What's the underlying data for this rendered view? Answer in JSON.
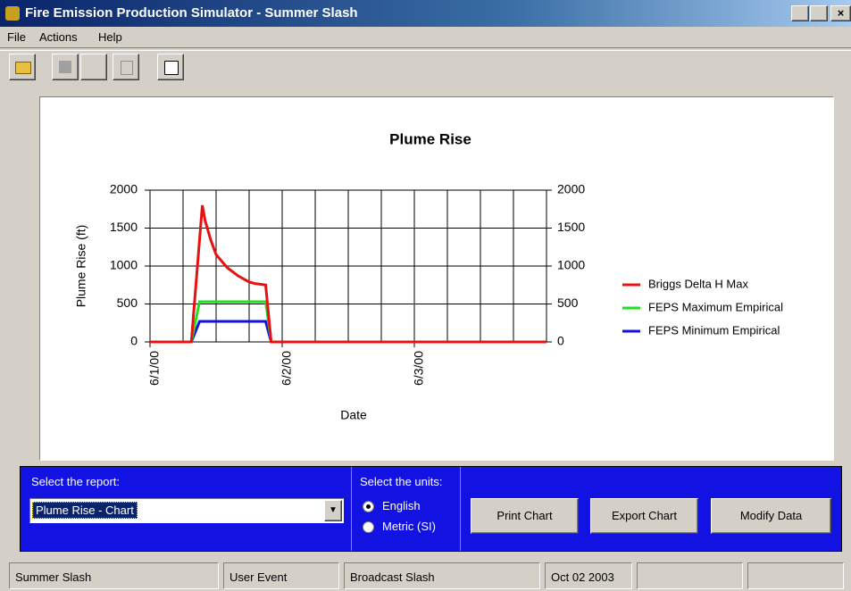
{
  "window": {
    "title": "Fire Emission Production Simulator - Summer Slash",
    "menu": [
      "File",
      "Actions",
      "Help"
    ]
  },
  "chart_data": {
    "type": "line",
    "title": "Plume Rise",
    "xlabel": "Date",
    "ylabel": "Plume Rise (ft)",
    "x": [
      0,
      7.5,
      9,
      9.5,
      10,
      11,
      12,
      14,
      16,
      18,
      19,
      20,
      21,
      22,
      72
    ],
    "xlim": [
      0,
      72
    ],
    "xticks": [
      {
        "value": 0,
        "label": "6/1/00"
      },
      {
        "value": 24,
        "label": "6/2/00"
      },
      {
        "value": 48,
        "label": "6/3/00"
      }
    ],
    "xgrid": [
      0,
      6,
      12,
      18,
      24,
      30,
      36,
      42,
      48,
      54,
      60,
      66,
      72
    ],
    "ylim": [
      0,
      2000
    ],
    "yticks": [
      0,
      500,
      1000,
      1500,
      2000
    ],
    "y2lim": [
      0,
      2000
    ],
    "y2ticks": [
      0,
      500,
      1000,
      1500,
      2000
    ],
    "grid": true,
    "legend": "right",
    "series": [
      {
        "name": "Briggs Delta H Max",
        "color": "#e81010",
        "values": [
          0,
          0,
          1350,
          1800,
          1600,
          1350,
          1150,
          980,
          870,
          790,
          770,
          760,
          750,
          0,
          0
        ]
      },
      {
        "name": "FEPS Maximum Empirical",
        "color": "#20e020",
        "values": [
          0,
          0,
          530,
          530,
          530,
          530,
          530,
          530,
          530,
          530,
          530,
          530,
          530,
          0,
          0
        ]
      },
      {
        "name": "FEPS Minimum Empirical",
        "color": "#1010e8",
        "values": [
          0,
          0,
          270,
          270,
          270,
          270,
          270,
          270,
          270,
          270,
          270,
          270,
          270,
          0,
          0
        ]
      }
    ]
  },
  "controls": {
    "report_label": "Select the report:",
    "report_value": "Plume Rise - Chart",
    "units_label": "Select the units:",
    "units": [
      "English",
      "Metric (SI)"
    ],
    "units_selected": 0,
    "buttons": [
      "Print Chart",
      "Export Chart",
      "Modify Data"
    ]
  },
  "status": [
    "Summer Slash",
    "User Event",
    "Broadcast Slash",
    "Oct 02 2003",
    null,
    null
  ]
}
